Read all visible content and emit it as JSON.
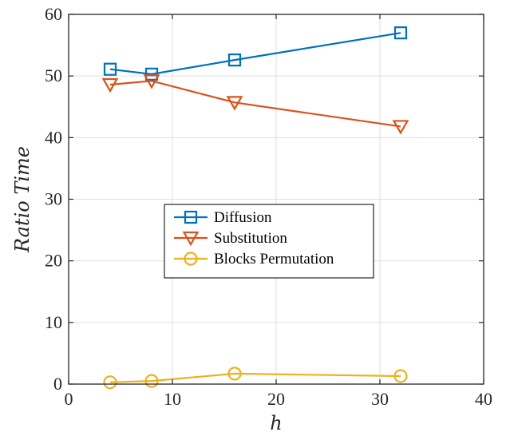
{
  "chart_data": {
    "type": "line",
    "xlabel": "h",
    "ylabel": "Ratio Time",
    "xlim": [
      0,
      40
    ],
    "ylim": [
      0,
      60
    ],
    "xticks": [
      0,
      10,
      20,
      30,
      40
    ],
    "yticks": [
      0,
      10,
      20,
      30,
      40,
      50,
      60
    ],
    "grid": true,
    "legend_position": "center",
    "x": [
      4,
      8,
      16,
      32
    ],
    "series": [
      {
        "name": "Diffusion",
        "values": [
          51.1,
          50.3,
          52.6,
          57.0
        ],
        "color": "#0072BD",
        "marker": "square"
      },
      {
        "name": "Substitution",
        "values": [
          48.6,
          49.2,
          45.7,
          41.8
        ],
        "color": "#D95319",
        "marker": "triangle-down"
      },
      {
        "name": "Blocks Permutation",
        "values": [
          0.3,
          0.5,
          1.7,
          1.3
        ],
        "color": "#EDB120",
        "marker": "circle"
      }
    ]
  }
}
